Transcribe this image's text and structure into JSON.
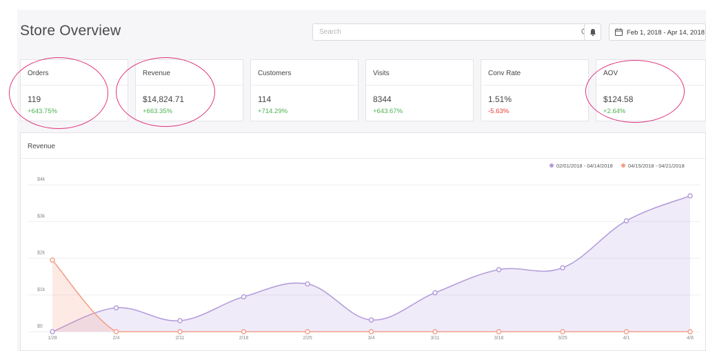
{
  "header": {
    "title": "Store Overview",
    "search_placeholder": "Search",
    "date_range": "Feb 1, 2018 - Apr 14, 2018"
  },
  "metrics": [
    {
      "label": "Orders",
      "value": "119",
      "change": "+643.75%",
      "trend": "positive"
    },
    {
      "label": "Revenue",
      "value": "$14,824.71",
      "change": "+663.35%",
      "trend": "positive"
    },
    {
      "label": "Customers",
      "value": "114",
      "change": "+714.29%",
      "trend": "positive"
    },
    {
      "label": "Visits",
      "value": "8344",
      "change": "+643.67%",
      "trend": "positive"
    },
    {
      "label": "Conv Rate",
      "value": "1.51%",
      "change": "-5.63%",
      "trend": "negative"
    },
    {
      "label": "AOV",
      "value": "$124.58",
      "change": "+2.64%",
      "trend": "positive"
    }
  ],
  "chart_panel": {
    "title": "Revenue"
  },
  "chart_data": {
    "type": "area",
    "title": "Revenue",
    "xlabel": "",
    "ylabel": "",
    "categories": [
      "1/28",
      "2/4",
      "2/11",
      "2/18",
      "2/25",
      "3/4",
      "3/11",
      "3/18",
      "3/25",
      "4/1",
      "4/8"
    ],
    "y_ticks": [
      "$0",
      "$1k",
      "$2k",
      "$3k",
      "$4k"
    ],
    "ylim": [
      0,
      4000
    ],
    "grid": true,
    "legend_position": "top-right",
    "series": [
      {
        "name": "02/01/2018 - 04/14/2018",
        "color": "#b39ddb",
        "values": [
          0,
          650,
          300,
          950,
          1300,
          320,
          1060,
          1690,
          1740,
          3020,
          3700
        ]
      },
      {
        "name": "04/15/2018 - 04/21/2018",
        "color": "#f4a08a",
        "values": [
          1950,
          0,
          0,
          0,
          0,
          0,
          0,
          0,
          0,
          0,
          0
        ]
      }
    ]
  },
  "colors": {
    "positive": "#4caf50",
    "negative": "#e53935",
    "annotation": "#e0307c",
    "series_primary": "#b39ddb",
    "series_secondary": "#f4a08a"
  },
  "icons": {
    "search": "search-icon",
    "bell": "bell-icon",
    "calendar": "calendar-icon"
  }
}
